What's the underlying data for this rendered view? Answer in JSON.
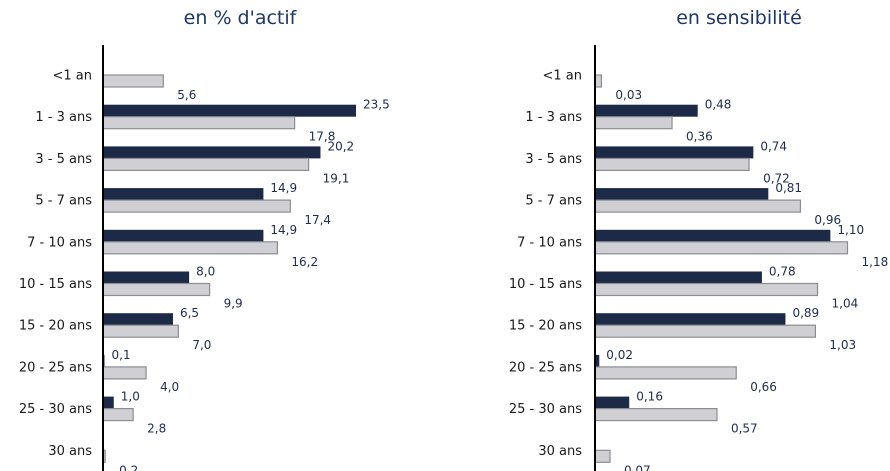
{
  "colors": {
    "dark": "#1c2a48",
    "light": "#d0d0d4",
    "light_border": "#8c8c92",
    "title": "#1f3864"
  },
  "chart_data": [
    {
      "type": "bar",
      "orientation": "horizontal",
      "title": "en % d'actif",
      "categories": [
        "<1 an",
        "1 - 3 ans",
        "3 - 5 ans",
        "5 - 7 ans",
        "7 - 10 ans",
        "10 - 15 ans",
        "15 - 20 ans",
        "20 - 25 ans",
        "25 - 30 ans",
        "30 ans"
      ],
      "series": [
        {
          "color": "#1c2a48",
          "values": [
            null,
            23.5,
            20.2,
            14.9,
            14.9,
            8.0,
            6.5,
            0.1,
            1.0,
            null
          ],
          "labels": [
            "",
            "23,5",
            "20,2",
            "14,9",
            "14,9",
            "8,0",
            "6,5",
            "0,1",
            "1,0",
            ""
          ]
        },
        {
          "color": "#d0d0d4",
          "values": [
            5.6,
            17.8,
            19.1,
            17.4,
            16.2,
            9.9,
            7.0,
            4.0,
            2.8,
            0.2
          ],
          "labels": [
            "5,6",
            "17,8",
            "19,1",
            "17,4",
            "16,2",
            "9,9",
            "7,0",
            "4,0",
            "2,8",
            "0,2"
          ]
        }
      ],
      "xlim": [
        0,
        25
      ]
    },
    {
      "type": "bar",
      "orientation": "horizontal",
      "title": "en sensibilité",
      "categories": [
        "<1 an",
        "1 - 3 ans",
        "3 - 5 ans",
        "5 - 7 ans",
        "7 - 10 ans",
        "10 - 15 ans",
        "15 - 20 ans",
        "20 - 25 ans",
        "25 - 30 ans",
        "30 ans"
      ],
      "series": [
        {
          "color": "#1c2a48",
          "values": [
            null,
            0.48,
            0.74,
            0.81,
            1.1,
            0.78,
            0.89,
            0.02,
            0.16,
            null
          ],
          "labels": [
            "",
            "0,48",
            "0,74",
            "0,81",
            "1,10",
            "0,78",
            "0,89",
            "0,02",
            "0,16",
            ""
          ]
        },
        {
          "color": "#d0d0d4",
          "values": [
            0.03,
            0.36,
            0.72,
            0.96,
            1.18,
            1.04,
            1.03,
            0.66,
            0.57,
            0.07
          ],
          "labels": [
            "0,03",
            "0,36",
            "0,72",
            "0,96",
            "1,18",
            "1,04",
            "1,03",
            "0,66",
            "0,57",
            "0,07"
          ]
        }
      ],
      "xlim": [
        0,
        1.25
      ]
    }
  ]
}
